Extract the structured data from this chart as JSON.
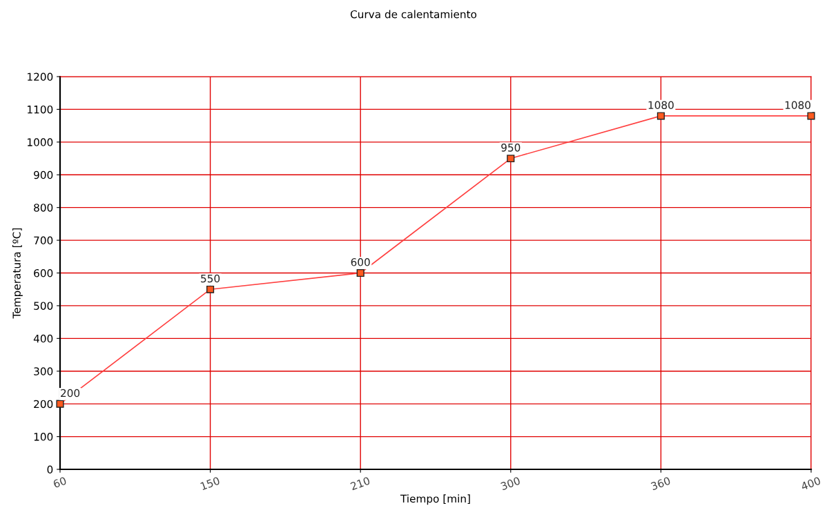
{
  "chart_data": {
    "type": "line",
    "title": "Curva de calentamiento",
    "xlabel": "Tiempo [min]",
    "ylabel": "Temperatura [ºC]",
    "categories": [
      "60",
      "150",
      "210",
      "300",
      "360",
      "400"
    ],
    "series": [
      {
        "color": "#ff4040",
        "values": [
          200,
          550,
          600,
          950,
          1080,
          1080
        ]
      }
    ],
    "ylim": [
      0,
      1200
    ],
    "yticks": [
      0,
      100,
      200,
      300,
      400,
      500,
      600,
      700,
      800,
      900,
      1000,
      1100,
      1200
    ],
    "grid": true,
    "marker": "square",
    "data_labels": true
  }
}
